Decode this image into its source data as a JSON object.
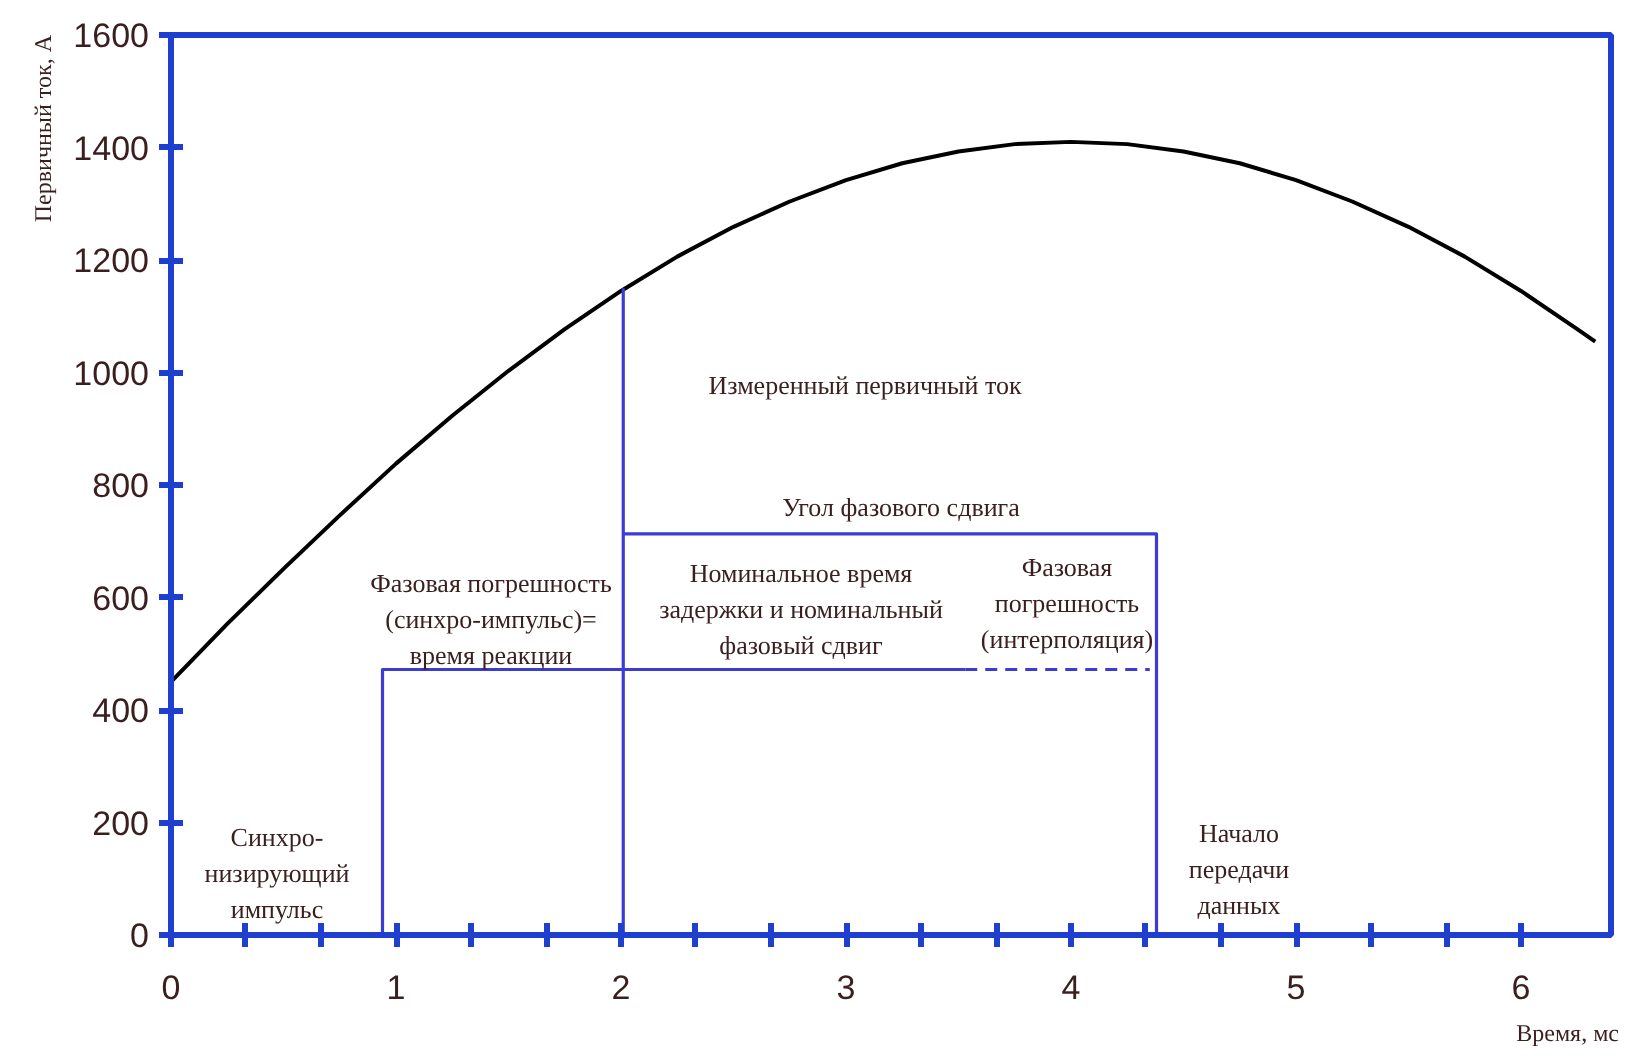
{
  "chart_data": {
    "type": "line",
    "xlabel": "Время, мс",
    "ylabel": "Первичный ток, А",
    "xlim": [
      0,
      6.4
    ],
    "ylim": [
      0,
      1600
    ],
    "xticks": [
      0,
      {
        "value": 0.333,
        "label": null
      },
      {
        "value": 0.667,
        "label": null
      },
      1,
      {
        "value": 1.333,
        "label": null
      },
      {
        "value": 1.667,
        "label": null
      },
      2,
      {
        "value": 2.333,
        "label": null
      },
      {
        "value": 2.667,
        "label": null
      },
      3,
      {
        "value": 3.333,
        "label": null
      },
      {
        "value": 3.667,
        "label": null
      },
      4,
      {
        "value": 4.333,
        "label": null
      },
      {
        "value": 4.667,
        "label": null
      },
      5,
      {
        "value": 5.333,
        "label": null
      },
      {
        "value": 5.667,
        "label": null
      },
      6
    ],
    "yticks": [
      0,
      200,
      400,
      600,
      800,
      1000,
      1200,
      1400,
      1600
    ],
    "grid": false,
    "marker": "none",
    "series": [
      {
        "color": "#000000",
        "line_style": "solid",
        "x": [
          0,
          0.25,
          0.5,
          0.75,
          1,
          1.25,
          1.5,
          1.75,
          2,
          2.25,
          2.5,
          2.75,
          3,
          3.25,
          3.5,
          3.75,
          4,
          4.25,
          4.5,
          4.75,
          5,
          5.25,
          5.5,
          5.75,
          6,
          6.25,
          6.33
        ],
        "values": [
          450,
          553,
          651,
          746,
          838,
          923,
          1003,
          1077,
          1145,
          1206,
          1259,
          1304,
          1342,
          1372,
          1393,
          1406,
          1410,
          1406,
          1393,
          1372,
          1342,
          1304,
          1259,
          1206,
          1145,
          1077,
          1055
        ]
      },
      {
        "color": "#3b3bd6",
        "line_style": "solid",
        "x": [
          0.94,
          0.94,
          3.53
        ],
        "values": [
          0,
          472,
          472
        ]
      },
      {
        "color": "#3b3bd6",
        "line_style": "dashed",
        "x": [
          3.53,
          4.35
        ],
        "values": [
          472,
          472
        ]
      },
      {
        "color": "#3b3bd6",
        "line_style": "solid",
        "x": [
          2.01,
          2.01
        ],
        "values": [
          0,
          1150
        ]
      },
      {
        "color": "#3b3bd6",
        "line_style": "solid",
        "x": [
          2.01,
          4.38,
          4.38
        ],
        "values": [
          713,
          713,
          0
        ]
      }
    ],
    "annotations": [
      "Синхро-\nнизирующий\nимпульс",
      "Фазовая погрешность\n(синхро-импульс)=\nвремя реакции",
      "Измеренный первичный ток",
      "Угол фазового сдвига",
      "Номинальное время\nзадержки и номинальный\nфазовый сдвиг",
      "Фазовая\nпогрешность\n(интерполяция)",
      "Начало\nпередачи\nданных"
    ]
  }
}
